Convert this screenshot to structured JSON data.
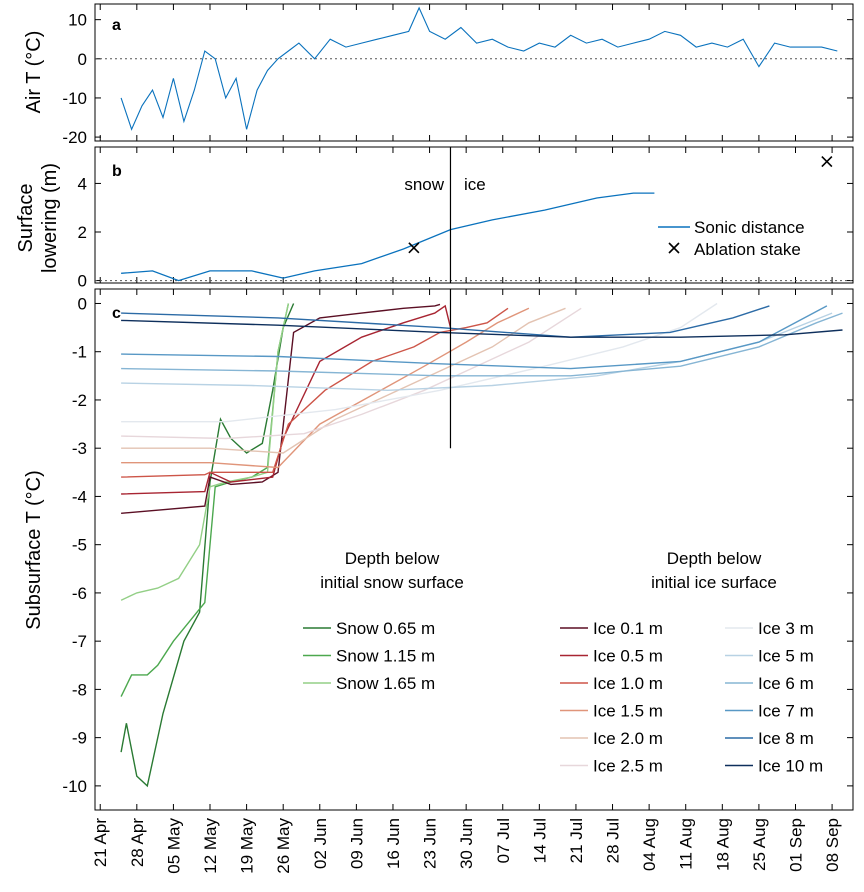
{
  "colors": {
    "air": "#0a72bd",
    "surface": "#0a72bd",
    "snow": [
      "#2a7a33",
      "#4ca84e",
      "#93cf86"
    ],
    "ice": [
      "#5b0f24",
      "#a82532",
      "#cd5548",
      "#e0957a",
      "#e3c3b2",
      "#e7d7db",
      "#e3e8ee",
      "#b8d2e4",
      "#86b5d4",
      "#5898c5",
      "#2c6ba6",
      "#0e2f5c"
    ]
  },
  "chart_data": [
    {
      "panel": "a",
      "type": "line",
      "ylabel": "Air T (°C)",
      "ylim": [
        -21,
        14
      ],
      "yticks": [
        10,
        0,
        -10,
        -20
      ],
      "zero_line": true,
      "series": [
        {
          "x": [
            "2019-04-25",
            "2019-04-27",
            "2019-04-29",
            "2019-05-01",
            "2019-05-03",
            "2019-05-05",
            "2019-05-07",
            "2019-05-09",
            "2019-05-11",
            "2019-05-13",
            "2019-05-15",
            "2019-05-17",
            "2019-05-19",
            "2019-05-21",
            "2019-05-23",
            "2019-05-25",
            "2019-05-27",
            "2019-05-29",
            "2019-06-01",
            "2019-06-04",
            "2019-06-07",
            "2019-06-10",
            "2019-06-13",
            "2019-06-16",
            "2019-06-19",
            "2019-06-21",
            "2019-06-23",
            "2019-06-26",
            "2019-06-29",
            "2019-07-02",
            "2019-07-05",
            "2019-07-08",
            "2019-07-11",
            "2019-07-14",
            "2019-07-17",
            "2019-07-20",
            "2019-07-23",
            "2019-07-26",
            "2019-07-29",
            "2019-08-01",
            "2019-08-04",
            "2019-08-07",
            "2019-08-10",
            "2019-08-13",
            "2019-08-16",
            "2019-08-19",
            "2019-08-22",
            "2019-08-25",
            "2019-08-28",
            "2019-08-31",
            "2019-09-03",
            "2019-09-06",
            "2019-09-09"
          ],
          "y": [
            -10,
            -18,
            -12,
            -8,
            -15,
            -5,
            -16,
            -8,
            2,
            0,
            -10,
            -5,
            -18,
            -8,
            -3,
            0,
            2,
            4,
            0,
            5,
            3,
            4,
            5,
            6,
            7,
            13,
            7,
            5,
            8,
            4,
            5,
            3,
            2,
            4,
            3,
            6,
            4,
            5,
            3,
            4,
            5,
            7,
            6,
            3,
            4,
            3,
            5,
            -2,
            4,
            3,
            3,
            3,
            2
          ]
        }
      ]
    },
    {
      "panel": "b",
      "type": "line",
      "ylabel": "Surface lowering (m)",
      "ylim": [
        -0.1,
        5.5
      ],
      "yticks": [
        4,
        2,
        0
      ],
      "zero_line": true,
      "annotations": [
        "snow",
        "ice"
      ],
      "divider_date": "2019-06-27",
      "series": [
        {
          "name": "Sonic distance",
          "x": [
            "2019-04-25",
            "2019-05-01",
            "2019-05-06",
            "2019-05-12",
            "2019-05-20",
            "2019-05-26",
            "2019-06-01",
            "2019-06-10",
            "2019-06-18",
            "2019-06-27",
            "2019-07-05",
            "2019-07-15",
            "2019-07-25",
            "2019-08-01",
            "2019-08-05"
          ],
          "y": [
            0.3,
            0.4,
            0.0,
            0.4,
            0.4,
            0.1,
            0.4,
            0.7,
            1.3,
            2.1,
            2.5,
            2.9,
            3.4,
            3.6,
            3.6
          ]
        },
        {
          "name": "Ablation stake",
          "type": "scatter",
          "x": [
            "2019-06-20",
            "2019-09-07"
          ],
          "y": [
            1.35,
            4.9
          ]
        }
      ]
    },
    {
      "panel": "c",
      "type": "line",
      "ylabel": "Subsurface T (°C)",
      "ylim": [
        -10.5,
        0.3
      ],
      "yticks": [
        0,
        -1,
        -2,
        -3,
        -4,
        -5,
        -6,
        -7,
        -8,
        -9,
        -10
      ],
      "divider_date": "2019-06-27",
      "xticks": [
        "21 Apr",
        "28 Apr",
        "05 May",
        "12 May",
        "19 May",
        "26 May",
        "02 Jun",
        "09 Jun",
        "16 Jun",
        "23 Jun",
        "30 Jun",
        "07 Jul",
        "14 Jul",
        "21 Jul",
        "28 Jul",
        "04 Aug",
        "11 Aug",
        "18 Aug",
        "25 Aug",
        "01 Sep",
        "08 Sep"
      ],
      "legend_snow_title": [
        "Depth below",
        "initial snow surface"
      ],
      "legend_ice_title": [
        "Depth below",
        "initial ice surface"
      ],
      "series": [
        {
          "name": "Snow 0.65 m",
          "group": "snow",
          "x": [
            "2019-04-25",
            "2019-04-26",
            "2019-04-28",
            "2019-04-30",
            "2019-05-03",
            "2019-05-07",
            "2019-05-10",
            "2019-05-12",
            "2019-05-14",
            "2019-05-16",
            "2019-05-19",
            "2019-05-22",
            "2019-05-24",
            "2019-05-26",
            "2019-05-28"
          ],
          "y": [
            -9.3,
            -8.7,
            -9.8,
            -10.0,
            -8.5,
            -7.0,
            -6.4,
            -3.7,
            -2.4,
            -2.8,
            -3.1,
            -2.9,
            -1.8,
            -0.5,
            0.0
          ]
        },
        {
          "name": "Snow 1.15 m",
          "group": "snow",
          "x": [
            "2019-04-25",
            "2019-04-27",
            "2019-04-30",
            "2019-05-02",
            "2019-05-05",
            "2019-05-08",
            "2019-05-11",
            "2019-05-13",
            "2019-05-16",
            "2019-05-20",
            "2019-05-23",
            "2019-05-25",
            "2019-05-27"
          ],
          "y": [
            -8.15,
            -7.7,
            -7.7,
            -7.5,
            -7.0,
            -6.6,
            -6.2,
            -3.8,
            -3.7,
            -3.6,
            -3.4,
            -1.0,
            0.0
          ]
        },
        {
          "name": "Snow 1.65 m",
          "group": "snow",
          "x": [
            "2019-04-25",
            "2019-04-28",
            "2019-05-02",
            "2019-05-06",
            "2019-05-10",
            "2019-05-12",
            "2019-05-15",
            "2019-05-20",
            "2019-05-23",
            "2019-05-25",
            "2019-05-27"
          ],
          "y": [
            -6.15,
            -6.0,
            -5.9,
            -5.7,
            -5.0,
            -3.8,
            -3.7,
            -3.6,
            -3.5,
            -1.0,
            0.0
          ]
        },
        {
          "name": "Ice 0.1 m",
          "group": "ice",
          "x": [
            "2019-04-25",
            "2019-05-11",
            "2019-05-12",
            "2019-05-16",
            "2019-05-22",
            "2019-05-25",
            "2019-05-28",
            "2019-06-02",
            "2019-06-10",
            "2019-06-18",
            "2019-06-24",
            "2019-06-25"
          ],
          "y": [
            -4.35,
            -4.2,
            -3.6,
            -3.75,
            -3.7,
            -3.5,
            -0.6,
            -0.3,
            -0.2,
            -0.1,
            -0.05,
            -0.02
          ]
        },
        {
          "name": "Ice 0.5 m",
          "group": "ice",
          "x": [
            "2019-04-25",
            "2019-05-11",
            "2019-05-12",
            "2019-05-16",
            "2019-05-24",
            "2019-05-26",
            "2019-06-02",
            "2019-06-10",
            "2019-06-18",
            "2019-06-24",
            "2019-06-26",
            "2019-06-27"
          ],
          "y": [
            -3.95,
            -3.9,
            -3.5,
            -3.7,
            -3.6,
            -2.8,
            -1.2,
            -0.7,
            -0.4,
            -0.2,
            -0.05,
            -0.5
          ]
        },
        {
          "name": "Ice 1.0 m",
          "group": "ice",
          "x": [
            "2019-04-25",
            "2019-05-11",
            "2019-05-12",
            "2019-05-24",
            "2019-05-27",
            "2019-06-03",
            "2019-06-12",
            "2019-06-20",
            "2019-06-25",
            "2019-06-30",
            "2019-07-04",
            "2019-07-08"
          ],
          "y": [
            -3.6,
            -3.55,
            -3.5,
            -3.5,
            -2.5,
            -1.8,
            -1.2,
            -0.9,
            -0.6,
            -0.5,
            -0.4,
            -0.1
          ]
        },
        {
          "name": "Ice 1.5 m",
          "group": "ice",
          "x": [
            "2019-04-25",
            "2019-05-12",
            "2019-05-25",
            "2019-06-02",
            "2019-06-12",
            "2019-06-22",
            "2019-06-30",
            "2019-07-06",
            "2019-07-12"
          ],
          "y": [
            -3.3,
            -3.3,
            -3.4,
            -2.5,
            -1.9,
            -1.3,
            -0.8,
            -0.4,
            -0.1
          ]
        },
        {
          "name": "Ice 2.0 m",
          "group": "ice",
          "x": [
            "2019-04-25",
            "2019-05-12",
            "2019-05-26",
            "2019-06-05",
            "2019-06-15",
            "2019-06-25",
            "2019-07-05",
            "2019-07-12",
            "2019-07-19"
          ],
          "y": [
            -3.0,
            -3.0,
            -3.1,
            -2.4,
            -1.9,
            -1.4,
            -0.9,
            -0.4,
            -0.1
          ]
        },
        {
          "name": "Ice 2.5 m",
          "group": "ice",
          "x": [
            "2019-04-25",
            "2019-05-15",
            "2019-05-30",
            "2019-06-10",
            "2019-06-22",
            "2019-07-02",
            "2019-07-12",
            "2019-07-22"
          ],
          "y": [
            -2.75,
            -2.8,
            -2.7,
            -2.3,
            -1.8,
            -1.3,
            -0.8,
            -0.1
          ]
        },
        {
          "name": "Ice 3 m",
          "group": "ice",
          "x": [
            "2019-04-25",
            "2019-05-15",
            "2019-06-05",
            "2019-06-25",
            "2019-07-15",
            "2019-07-30",
            "2019-08-10",
            "2019-08-17"
          ],
          "y": [
            -2.45,
            -2.45,
            -2.2,
            -1.8,
            -1.3,
            -0.9,
            -0.5,
            0.0
          ]
        },
        {
          "name": "Ice 5 m",
          "group": "ice",
          "x": [
            "2019-04-25",
            "2019-05-20",
            "2019-06-15",
            "2019-07-05",
            "2019-07-25",
            "2019-08-10",
            "2019-08-25",
            "2019-09-08"
          ],
          "y": [
            -1.65,
            -1.7,
            -1.8,
            -1.7,
            -1.5,
            -1.2,
            -0.8,
            -0.2
          ]
        },
        {
          "name": "Ice 6 m",
          "group": "ice",
          "x": [
            "2019-04-25",
            "2019-05-25",
            "2019-06-25",
            "2019-07-20",
            "2019-08-10",
            "2019-08-25",
            "2019-09-05",
            "2019-09-10"
          ],
          "y": [
            -1.35,
            -1.4,
            -1.5,
            -1.5,
            -1.3,
            -0.9,
            -0.4,
            -0.2
          ]
        },
        {
          "name": "Ice 7 m",
          "group": "ice",
          "x": [
            "2019-04-25",
            "2019-05-25",
            "2019-06-25",
            "2019-07-20",
            "2019-08-10",
            "2019-08-25",
            "2019-09-07"
          ],
          "y": [
            -1.05,
            -1.1,
            -1.25,
            -1.35,
            -1.2,
            -0.8,
            -0.05
          ]
        },
        {
          "name": "Ice 8 m",
          "group": "ice",
          "x": [
            "2019-04-25",
            "2019-05-25",
            "2019-06-25",
            "2019-07-20",
            "2019-08-08",
            "2019-08-20",
            "2019-08-27"
          ],
          "y": [
            -0.2,
            -0.3,
            -0.5,
            -0.7,
            -0.6,
            -0.3,
            -0.05
          ]
        },
        {
          "name": "Ice 10 m",
          "group": "ice",
          "x": [
            "2019-04-25",
            "2019-05-25",
            "2019-06-25",
            "2019-07-20",
            "2019-08-10",
            "2019-08-30",
            "2019-09-10"
          ],
          "y": [
            -0.35,
            -0.45,
            -0.6,
            -0.7,
            -0.7,
            -0.65,
            -0.55
          ]
        }
      ]
    }
  ]
}
